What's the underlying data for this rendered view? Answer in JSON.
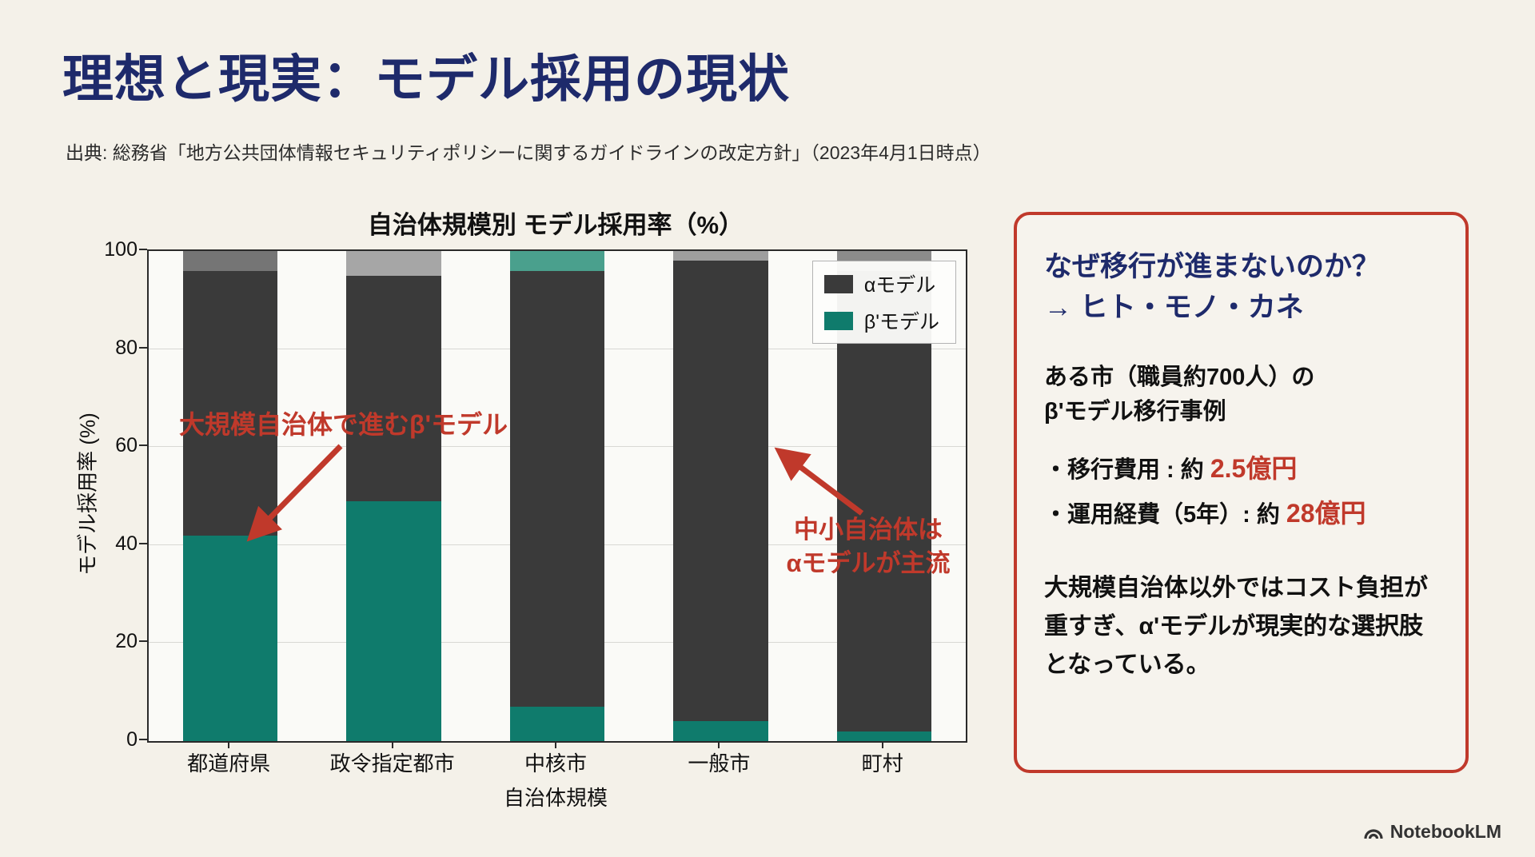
{
  "slide": {
    "title": "理想と現実：モデル採用の現状",
    "source": "出典: 総務省「地方公共団体情報セキュリティポリシーに関するガイドラインの改定方針」（2023年4月1日時点）",
    "footer_brand": "NotebookLM"
  },
  "chart_data": {
    "type": "bar",
    "stacked": true,
    "title": "自治体規模別 モデル採用率（%）",
    "xlabel": "自治体規模",
    "ylabel": "モデル採用率 (%)",
    "ylim": [
      0,
      100
    ],
    "yticks": [
      0,
      20,
      40,
      60,
      80,
      100
    ],
    "grid": true,
    "legend_position": "upper right",
    "categories": [
      "都道府県",
      "政令指定都市",
      "中核市",
      "一般市",
      "町村"
    ],
    "series": [
      {
        "name": "β'モデル",
        "color": "#0f7b6c",
        "values": [
          42,
          49,
          7,
          4,
          2
        ]
      },
      {
        "name": "αモデル",
        "color": "#3a3a3a",
        "values": [
          54,
          46,
          89,
          94,
          94
        ]
      },
      {
        "name": "unlabeled-top-segment",
        "color": "#8f8f8f",
        "values": [
          4,
          5,
          4,
          2,
          4
        ],
        "colors": [
          "#757575",
          "#a6a6a6",
          "#4aa08d",
          "#9e9e9e",
          "#8b8b8b"
        ]
      }
    ],
    "legend": [
      {
        "label": "αモデル",
        "color": "#3a3a3a"
      },
      {
        "label": "β'モデル",
        "color": "#0f7b6c"
      }
    ],
    "annotations": [
      {
        "text": "大規模自治体で進むβ'モデル",
        "color": "#c0392b"
      },
      {
        "text": "中小自治体は\nαモデルが主流",
        "color": "#c0392b"
      }
    ]
  },
  "panel": {
    "heading_line1": "なぜ移行が進まないのか？",
    "heading_line2": "→ ヒト・モノ・カネ",
    "case_line1": "ある市（職員約700人）の",
    "case_line2": "β'モデル移行事例",
    "bullet1_prefix": "・移行費用 : 約 ",
    "bullet1_value": "2.5億円",
    "bullet2_prefix": "・運用経費（5年）: 約 ",
    "bullet2_value": "28億円",
    "conclusion": "大規模自治体以外ではコスト負担が重すぎ、α'モデルが現実的な選択肢となっている。"
  },
  "colors": {
    "background": "#f4f1e9",
    "title": "#1e2a6b",
    "accent_red": "#c0392b",
    "beta_teal": "#0f7b6c",
    "alpha_dark": "#3a3a3a"
  }
}
